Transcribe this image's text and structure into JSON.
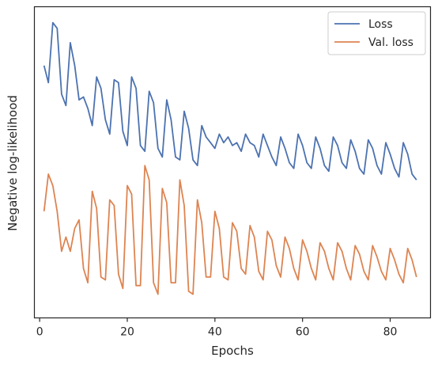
{
  "chart_data": {
    "type": "line",
    "title": "",
    "xlabel": "Epochs",
    "ylabel": "Negative log-likelihood",
    "xlim": [
      -1.2,
      89.2
    ],
    "xticks": [
      0,
      20,
      40,
      60,
      80
    ],
    "ylim": [
      0,
      100
    ],
    "yticks_shown": false,
    "grid": false,
    "legend": "top-right",
    "series": [
      {
        "name": "Loss",
        "color": "#4c72b0",
        "x": [
          1,
          2,
          3,
          4,
          5,
          6,
          7,
          8,
          9,
          10,
          11,
          12,
          13,
          14,
          15,
          16,
          17,
          18,
          19,
          20,
          21,
          22,
          23,
          24,
          25,
          26,
          27,
          28,
          29,
          30,
          31,
          32,
          33,
          34,
          35,
          36,
          37,
          38,
          39,
          40,
          41,
          42,
          43,
          44,
          45,
          46,
          47,
          48,
          49,
          50,
          51,
          52,
          53,
          54,
          55,
          56,
          57,
          58,
          59,
          60,
          61,
          62,
          63,
          64,
          65,
          66,
          67,
          68,
          69,
          70,
          71,
          72,
          73,
          74,
          75,
          76,
          77,
          78,
          79,
          80,
          81,
          82,
          83,
          84,
          85,
          86
        ],
        "values": [
          84,
          78,
          99,
          97,
          74,
          70,
          92,
          84,
          72,
          73,
          69,
          63,
          80,
          76,
          65,
          60,
          79,
          78,
          61,
          56,
          80,
          76,
          56,
          54,
          75,
          71,
          55,
          52,
          72,
          65,
          52,
          51,
          68,
          62,
          51,
          49,
          63,
          59,
          57,
          55,
          60,
          57,
          59,
          56,
          57,
          54,
          60,
          57,
          56,
          52,
          60,
          56,
          52,
          49,
          59,
          55,
          50,
          48,
          60,
          56,
          50,
          48,
          59,
          55,
          49,
          47,
          59,
          56,
          50,
          48,
          58,
          54,
          48,
          46,
          58,
          55,
          49,
          46,
          57,
          53,
          48,
          45,
          57,
          53,
          46,
          44
        ]
      },
      {
        "name": "Val. loss",
        "color": "#dd8452",
        "x": [
          1,
          2,
          3,
          4,
          5,
          6,
          7,
          8,
          9,
          10,
          11,
          12,
          13,
          14,
          15,
          16,
          17,
          18,
          19,
          20,
          21,
          22,
          23,
          24,
          25,
          26,
          27,
          28,
          29,
          30,
          31,
          32,
          33,
          34,
          35,
          36,
          37,
          38,
          39,
          40,
          41,
          42,
          43,
          44,
          45,
          46,
          47,
          48,
          49,
          50,
          51,
          52,
          53,
          54,
          55,
          56,
          57,
          58,
          59,
          60,
          61,
          62,
          63,
          64,
          65,
          66,
          67,
          68,
          69,
          70,
          71,
          72,
          73,
          74,
          75,
          76,
          77,
          78,
          79,
          80,
          81,
          82,
          83,
          84,
          85,
          86
        ],
        "values": [
          33,
          46,
          42,
          33,
          19,
          24,
          19,
          27,
          30,
          13,
          8,
          40,
          34,
          10,
          9,
          37,
          35,
          11,
          6,
          42,
          39,
          7,
          7,
          49,
          44,
          8,
          4,
          41,
          36,
          8,
          8,
          44,
          35,
          5,
          4,
          37,
          29,
          10,
          10,
          33,
          27,
          10,
          9,
          29,
          26,
          13,
          11,
          28,
          24,
          12,
          9,
          26,
          23,
          14,
          10,
          24,
          20,
          13,
          9,
          23,
          19,
          13,
          9,
          22,
          19,
          13,
          9,
          22,
          19,
          13,
          9,
          21,
          18,
          12,
          9,
          21,
          17,
          12,
          9,
          20,
          16,
          11,
          8,
          20,
          16,
          10
        ]
      }
    ]
  }
}
